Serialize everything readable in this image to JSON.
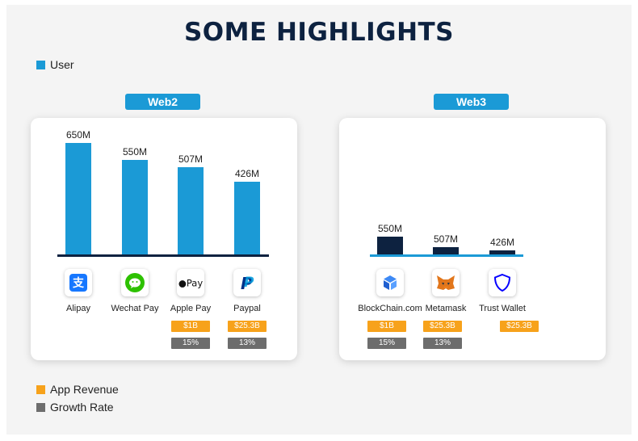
{
  "title": "SOME HIGHLIGHTS",
  "legend": {
    "user": "User",
    "revenue": "App Revenue",
    "growth": "Growth Rate"
  },
  "colors": {
    "user": "#1b9ad6",
    "web3_bar": "#0d2240",
    "revenue": "#f7a21b",
    "growth": "#6d6d6d",
    "title": "#0d2240"
  },
  "chart_data": [
    {
      "type": "bar",
      "group": "Web2",
      "categories": [
        "Alipay",
        "Wechat Pay",
        "Apple Pay",
        "Paypal"
      ],
      "values": [
        650,
        550,
        507,
        426
      ],
      "value_labels": [
        "650M",
        "550M",
        "507M",
        "426M"
      ],
      "icons": [
        "alipay-icon",
        "wechat-icon",
        "apple-pay-icon",
        "paypal-icon"
      ],
      "app_revenue": [
        "",
        "",
        "$1B",
        "$25.3B"
      ],
      "growth_rate": [
        "",
        "",
        "15%",
        "13%"
      ],
      "ylim": [
        0,
        650
      ]
    },
    {
      "type": "bar",
      "group": "Web3",
      "categories": [
        "BlockChain.com",
        "Metamask",
        "Trust Wallet"
      ],
      "values": [
        550,
        507,
        426
      ],
      "value_labels": [
        "550M",
        "507M",
        "426M"
      ],
      "icons": [
        "blockchain-icon",
        "metamask-icon",
        "trust-wallet-icon"
      ],
      "app_revenue": [
        "$1B",
        "$25.3B",
        "$25.3B"
      ],
      "growth_rate": [
        "15%",
        "13%",
        ""
      ]
    }
  ]
}
